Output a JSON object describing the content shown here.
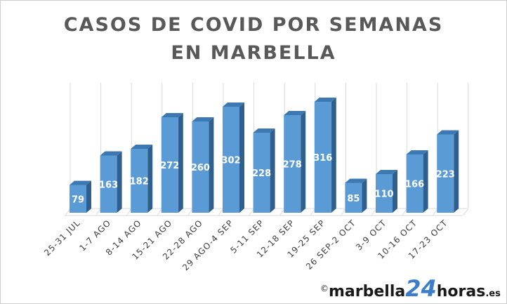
{
  "chart_data": {
    "type": "bar",
    "title_lines": [
      "CASOS DE COVID POR SEMANAS",
      "EN MARBELLA"
    ],
    "categories": [
      "25-31 JUL",
      "1-7 AGO",
      "8-14 AGO",
      "15-21 AGO",
      "22-28 AGO",
      "29 AGO-4 SEP",
      "5-11 SEP",
      "12-18 SEP",
      "19-25 SEP",
      "26 SEP-2 OCT",
      "3-9 OCT",
      "10-16 OCT",
      "17-23 OCT"
    ],
    "values": [
      79,
      163,
      182,
      272,
      260,
      302,
      228,
      278,
      316,
      85,
      110,
      166,
      223
    ],
    "ylim": [
      0,
      350
    ],
    "style": "3d-column",
    "grid": true,
    "data_labels": true,
    "colors": {
      "front": "#5b9bd5",
      "side": "#2e5f8e",
      "top": "#3e78b2",
      "label": "#ffffff",
      "title": "#595959",
      "grid": "#d9d9d9",
      "tick": "#404040"
    }
  },
  "watermark": {
    "copyright": "©",
    "part1": "marbella",
    "part2": "24",
    "part3": "horas",
    "tld": ".es"
  }
}
